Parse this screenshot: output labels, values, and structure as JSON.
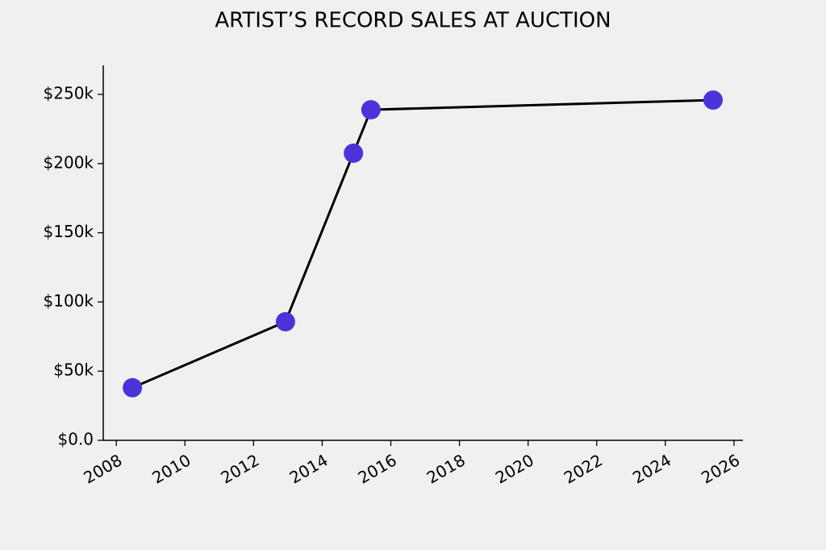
{
  "chart_data": {
    "type": "line",
    "title": "ARTIST’S RECORD SALES AT AUCTION",
    "x": [
      2008.47,
      2012.93,
      2014.91,
      2015.42,
      2025.39
    ],
    "values": [
      38000,
      85700,
      207500,
      238900,
      245900
    ],
    "line_color": "#000000",
    "marker_color": "#4a34d9",
    "xlim": [
      2007.62,
      2026.26
    ],
    "xticks": [
      2008,
      2010,
      2012,
      2014,
      2016,
      2018,
      2020,
      2022,
      2024,
      2026
    ],
    "ylim": [
      0,
      271000
    ],
    "yticks": [
      {
        "value": 0,
        "label": "$0.0"
      },
      {
        "value": 50000,
        "label": "$50k"
      },
      {
        "value": 100000,
        "label": "$100k"
      },
      {
        "value": 150000,
        "label": "$150k"
      },
      {
        "value": 200000,
        "label": "$200k"
      },
      {
        "value": 250000,
        "label": "$250k"
      }
    ]
  }
}
